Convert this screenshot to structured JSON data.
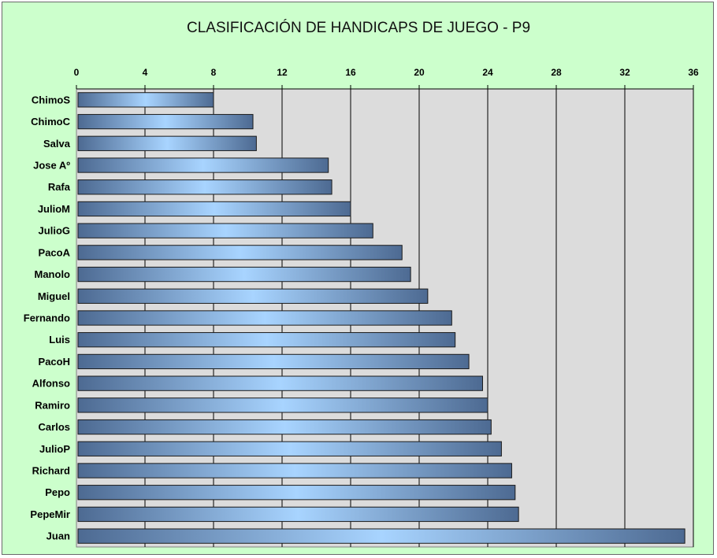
{
  "chart_data": {
    "type": "bar",
    "orientation": "horizontal",
    "title": "CLASIFICACIÓN DE HANDICAPS DE JUEGO - P9",
    "xlabel": "",
    "ylabel": "",
    "categories": [
      "ChimoS",
      "ChimoC",
      "Salva",
      "Jose Aº",
      "Rafa",
      "JulioM",
      "JulioG",
      "PacoA",
      "Manolo",
      "Miguel",
      "Fernando",
      "Luis",
      "PacoH",
      "Alfonso",
      "Ramiro",
      "Carlos",
      "JulioP",
      "Richard",
      "Pepo",
      "PepeMir",
      "Juan"
    ],
    "values": [
      8.0,
      10.3,
      10.5,
      14.7,
      14.9,
      16.0,
      17.3,
      19.0,
      19.5,
      20.5,
      21.9,
      22.1,
      22.9,
      23.7,
      24.0,
      24.2,
      24.8,
      25.4,
      25.6,
      25.8,
      35.5
    ],
    "xlim": [
      0,
      36
    ],
    "ticks": [
      "0",
      "4",
      "8",
      "12",
      "16",
      "20",
      "24",
      "28",
      "32",
      "36"
    ],
    "axis_position": "top",
    "grid": true,
    "colors": {
      "frame_background": "#ccffcc",
      "plot_background": "#dcdcdc",
      "bar_dark": "#4d6a92",
      "bar_light": "#a8d4ff",
      "gridline": "#000000"
    }
  }
}
